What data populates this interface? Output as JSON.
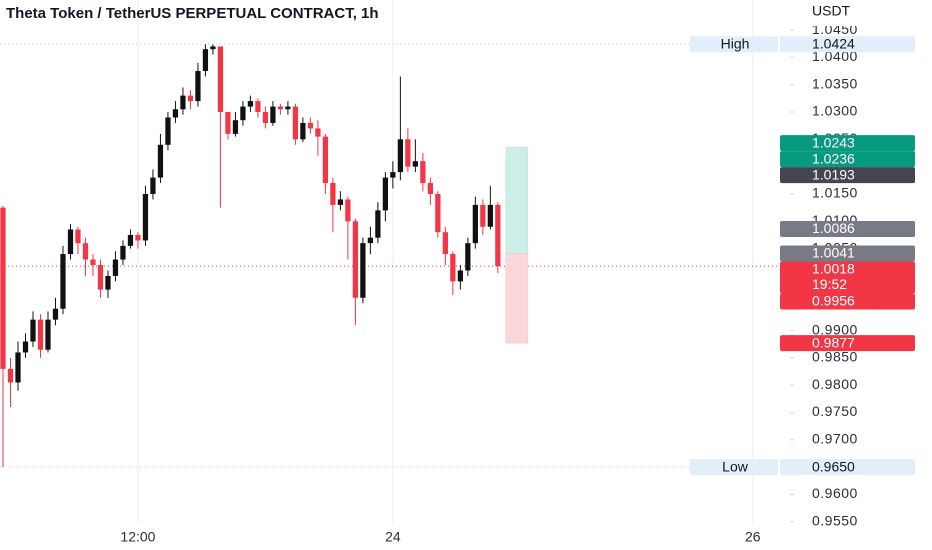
{
  "chart_data": {
    "type": "candlestick",
    "title": "Theta Token / TetherUS PERPETUAL CONTRACT, 1h",
    "currency": "USDT",
    "up_color": "#111111",
    "down_color": "#f23645",
    "open": [
      1.0125,
      0.983,
      0.9805,
      0.986,
      0.988,
      0.992,
      0.9865,
      0.992,
      0.994,
      1.004,
      1.0085,
      1.006,
      1.003,
      1.002,
      0.9975,
      1.0,
      1.003,
      1.0055,
      1.0075,
      1.0065,
      1.015,
      1.018,
      1.024,
      1.029,
      1.0305,
      1.033,
      1.032,
      1.0375,
      1.0415,
      1.042,
      1.03,
      1.026,
      1.0285,
      1.031,
      1.032,
      1.03,
      1.028,
      1.031,
      1.0305,
      1.031,
      1.025,
      1.028,
      1.027,
      1.0255,
      1.017,
      1.013,
      1.014,
      1.01,
      0.996,
      1.006,
      1.007,
      1.012,
      1.018,
      1.019,
      1.025,
      1.02,
      1.021,
      1.017,
      1.015,
      1.008,
      1.004,
      0.999,
      1.001,
      1.006,
      1.013,
      1.009,
      1.013
    ],
    "high": [
      1.0128,
      0.985,
      0.988,
      0.9895,
      0.9935,
      0.993,
      0.9935,
      0.996,
      1.0055,
      1.0095,
      1.009,
      1.007,
      1.004,
      1.003,
      1.001,
      1.0045,
      1.0065,
      1.0085,
      1.008,
      1.0165,
      1.0195,
      1.026,
      1.03,
      1.032,
      1.0345,
      1.034,
      1.039,
      1.0424,
      1.0424,
      1.042,
      1.03,
      1.03,
      1.032,
      1.033,
      1.0325,
      1.031,
      1.032,
      1.0315,
      1.032,
      1.0315,
      1.029,
      1.029,
      1.0285,
      1.026,
      1.018,
      1.0155,
      1.0145,
      1.0105,
      1.007,
      1.009,
      1.0135,
      1.019,
      1.021,
      1.0365,
      1.027,
      1.025,
      1.0225,
      1.018,
      1.0155,
      1.009,
      1.0045,
      1.002,
      1.007,
      1.0145,
      1.014,
      1.0165,
      1.0135
    ],
    "low": [
      0.965,
      0.976,
      0.979,
      0.985,
      0.987,
      0.985,
      0.986,
      0.991,
      0.993,
      1.003,
      1.004,
      1.0,
      1.0,
      0.996,
      0.996,
      0.999,
      1.002,
      1.005,
      1.005,
      1.0055,
      1.014,
      1.017,
      1.023,
      1.028,
      1.0295,
      1.0305,
      1.031,
      1.0365,
      1.0405,
      1.0125,
      1.025,
      1.0255,
      1.0275,
      1.03,
      1.029,
      1.027,
      1.0275,
      1.0295,
      1.0295,
      1.024,
      1.0245,
      1.026,
      1.022,
      1.015,
      1.008,
      1.012,
      1.003,
      0.991,
      0.995,
      1.004,
      1.006,
      1.01,
      1.016,
      1.0175,
      1.019,
      1.019,
      1.0155,
      1.013,
      1.007,
      1.002,
      0.9965,
      0.9975,
      1.0,
      1.005,
      1.0075,
      1.0085,
      1.0005
    ],
    "close": [
      0.983,
      0.9805,
      0.986,
      0.988,
      0.992,
      0.9865,
      0.992,
      0.994,
      1.004,
      1.0085,
      1.006,
      1.003,
      1.002,
      0.9975,
      1.0,
      1.003,
      1.0055,
      1.0075,
      1.0065,
      1.015,
      1.018,
      1.024,
      1.029,
      1.0305,
      1.033,
      1.032,
      1.0375,
      1.0415,
      1.042,
      1.03,
      1.026,
      1.0285,
      1.031,
      1.032,
      1.03,
      1.028,
      1.031,
      1.0305,
      1.031,
      1.025,
      1.028,
      1.027,
      1.0255,
      1.017,
      1.013,
      1.014,
      1.01,
      0.996,
      1.006,
      1.007,
      1.012,
      1.018,
      1.019,
      1.025,
      1.02,
      1.021,
      1.017,
      1.015,
      1.008,
      1.004,
      0.999,
      1.001,
      1.006,
      1.013,
      1.009,
      1.013,
      1.0018
    ],
    "xlim": [
      -0.4,
      104.3
    ],
    "xticks": [
      {
        "value": 18,
        "label": "12:00"
      },
      {
        "value": 52,
        "label": "24"
      },
      {
        "value": 100,
        "label": "26"
      }
    ],
    "ylim": [
      0.9535,
      1.0505
    ],
    "yticks": [
      {
        "value": 0.955,
        "label": "0.9550"
      },
      {
        "value": 0.96,
        "label": "0.9600"
      },
      {
        "value": 0.965,
        "label": "0.9650"
      },
      {
        "value": 0.97,
        "label": "0.9700"
      },
      {
        "value": 0.975,
        "label": "0.9750"
      },
      {
        "value": 0.98,
        "label": "0.9800"
      },
      {
        "value": 0.985,
        "label": "0.9850"
      },
      {
        "value": 0.99,
        "label": "0.9900"
      },
      {
        "value": 0.995,
        "label": "0.9950"
      },
      {
        "value": 1,
        "label": "1.0000"
      },
      {
        "value": 1.005,
        "label": "1.0050"
      },
      {
        "value": 1.01,
        "label": "1.0100"
      },
      {
        "value": 1.015,
        "label": "1.0150"
      },
      {
        "value": 1.02,
        "label": "1.0200"
      },
      {
        "value": 1.025,
        "label": "1.0250"
      },
      {
        "value": 1.03,
        "label": "1.0300"
      },
      {
        "value": 1.035,
        "label": "1.0350"
      },
      {
        "value": 1.04,
        "label": "1.0400"
      },
      {
        "value": 1.045,
        "label": "1.0450"
      }
    ],
    "price_tags": [
      {
        "value": 1.0424,
        "label": "1.0424",
        "name": "High",
        "color": "#e3eefb",
        "text_color": "#131722",
        "line": true
      },
      {
        "value": 1.0243,
        "label": "1.0243",
        "color": "#089981",
        "text_color": "#ffffff"
      },
      {
        "value": 1.0236,
        "label": "1.0236",
        "color": "#089981",
        "text_color": "#ffffff"
      },
      {
        "value": 1.0193,
        "label": "1.0193",
        "color": "#434651",
        "text_color": "#ffffff"
      },
      {
        "value": 1.0086,
        "label": "1.0086",
        "color": "#787b86",
        "text_color": "#ffffff"
      },
      {
        "value": 1.0041,
        "label": "1.0041",
        "color": "#787b86",
        "text_color": "#ffffff"
      },
      {
        "value": 1.0018,
        "label": "1.0018",
        "countdown": "19:52",
        "color": "#f23645",
        "text_color": "#ffffff",
        "line": true
      },
      {
        "value": 0.9956,
        "label": "0.9956",
        "color": "#f23645",
        "text_color": "#ffffff"
      },
      {
        "value": 0.9877,
        "label": "0.9877",
        "color": "#f23645",
        "text_color": "#ffffff"
      },
      {
        "value": 0.965,
        "label": "0.9650",
        "name": "Low",
        "color": "#e3eefb",
        "text_color": "#131722",
        "line": true
      }
    ],
    "position": {
      "entry": 1.0041,
      "target": 1.0236,
      "stop": 0.9877,
      "profit_color": "#cdeee6",
      "loss_color": "#fbd7da"
    }
  }
}
